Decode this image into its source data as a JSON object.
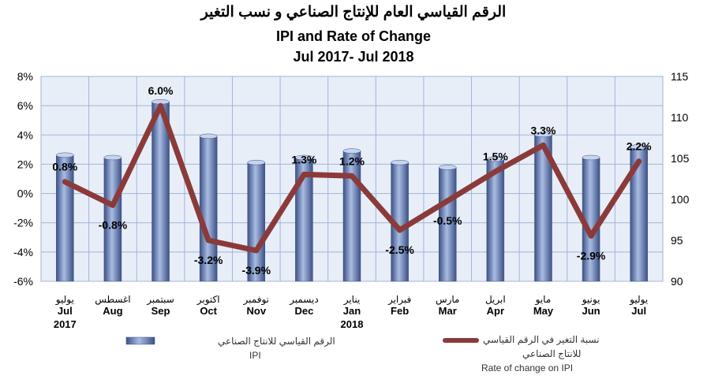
{
  "header": {
    "title_ar": "الرقم القياسي العام للإنتاج الصناعي و نسب التغير",
    "title_en": "IPI and Rate of Change",
    "period": "Jul 2017- Jul 2018"
  },
  "legend": {
    "ipi_ar": "الرقم القياسي للانتاج الصناعي",
    "ipi_en": "IPI",
    "rate_ar_line1": "نسبة التغير في الرقم القياسي",
    "rate_ar_line2": "للانتاج الصناعي",
    "rate_en": "Rate of change on IPI",
    "position": "bottom"
  },
  "colors": {
    "bar": "#7f96c8",
    "bar_dark": "#3c5185",
    "line": "#8b3a3a",
    "plot_bg": "#e8eef7",
    "grid": "#9fb6d8"
  },
  "chart_data": {
    "type": "bar+line",
    "categories": [
      {
        "ar": "يوليو",
        "en": "Jul",
        "year": "2017"
      },
      {
        "ar": "اغسطس",
        "en": "Aug",
        "year": ""
      },
      {
        "ar": "سبتمبر",
        "en": "Sep",
        "year": ""
      },
      {
        "ar": "اكتوبر",
        "en": "Oct",
        "year": ""
      },
      {
        "ar": "نوفمبر",
        "en": "Nov",
        "year": ""
      },
      {
        "ar": "ديسمبر",
        "en": "Dec",
        "year": ""
      },
      {
        "ar": "يناير",
        "en": "Jan",
        "year": "2018"
      },
      {
        "ar": "فبراير",
        "en": "Feb",
        "year": ""
      },
      {
        "ar": "مارس",
        "en": "Mar",
        "year": ""
      },
      {
        "ar": "ابريل",
        "en": "Apr",
        "year": ""
      },
      {
        "ar": "مايو",
        "en": "May",
        "year": ""
      },
      {
        "ar": "يونيو",
        "en": "Jun",
        "year": ""
      },
      {
        "ar": "يوليو",
        "en": "Jul",
        "year": ""
      }
    ],
    "series": [
      {
        "name": "IPI",
        "type": "bar",
        "axis": "right",
        "values": [
          105.4,
          105.1,
          111.9,
          107.7,
          104.5,
          105.1,
          105.9,
          104.5,
          103.9,
          104.9,
          107.9,
          105.1,
          106.4
        ]
      },
      {
        "name": "Rate of change on IPI",
        "type": "line",
        "axis": "left",
        "values": [
          0.8,
          -0.8,
          6.0,
          -3.2,
          -3.9,
          1.3,
          1.2,
          -2.5,
          -0.5,
          1.5,
          3.3,
          -2.9,
          2.2
        ],
        "labels": [
          "0.8%",
          "-0.8%",
          "6.0%",
          "-3.2%",
          "-3.9%",
          "1.3%",
          "1.2%",
          "-2.5%",
          "-0.5%",
          "1.5%",
          "3.3%",
          "-2.9%",
          "2.2%"
        ]
      }
    ],
    "y_left": {
      "min": -6,
      "max": 8,
      "ticks": [
        "-6%",
        "-4%",
        "-2%",
        "0%",
        "2%",
        "4%",
        "6%",
        "8%"
      ],
      "values": [
        -6,
        -4,
        -2,
        0,
        2,
        4,
        6,
        8
      ]
    },
    "y_right": {
      "min": 90,
      "max": 115,
      "ticks": [
        "90",
        "95",
        "100",
        "105",
        "110",
        "115"
      ],
      "values": [
        90,
        95,
        100,
        105,
        110,
        115
      ]
    },
    "grid": true
  }
}
